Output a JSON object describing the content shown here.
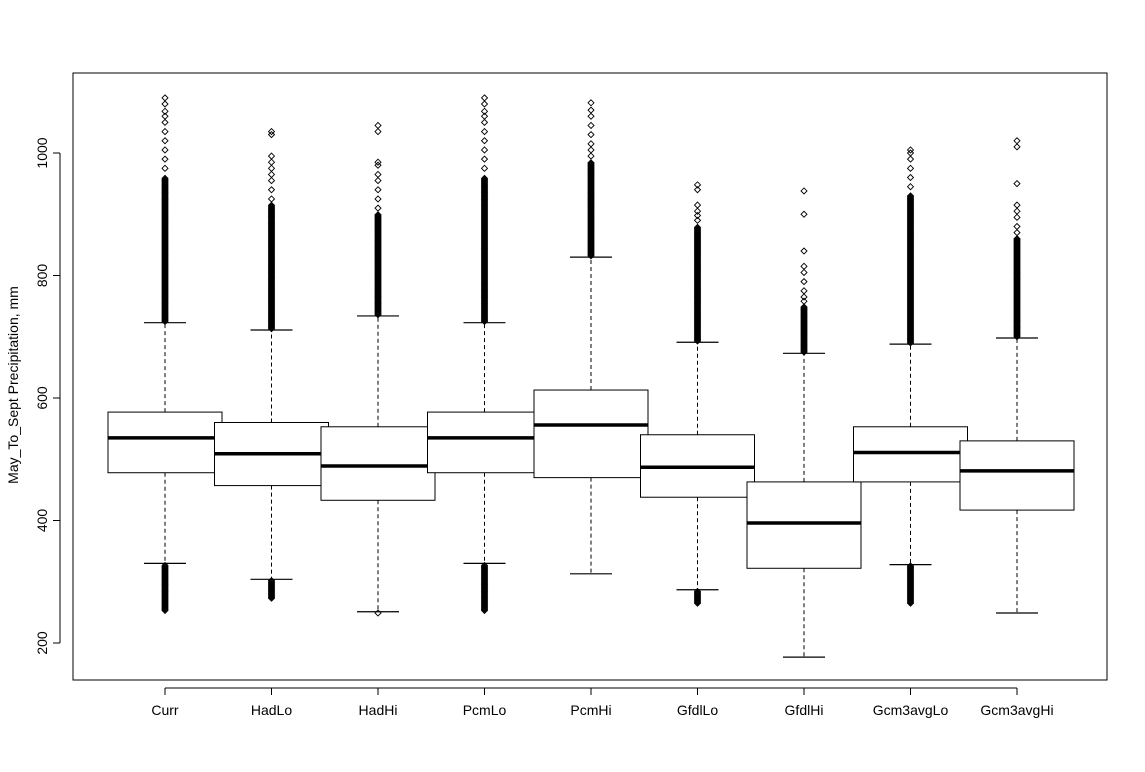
{
  "chart_data": {
    "type": "boxplot",
    "title": "",
    "xlabel": "",
    "ylabel": "May_To_Sept Precipitation, mm",
    "ylim": [
      140,
      1110
    ],
    "yticks": [
      200,
      400,
      600,
      800,
      1000
    ],
    "grid": false,
    "legend": "none",
    "categories": [
      "Curr",
      "HadLo",
      "HadHi",
      "PcmLo",
      "PcmHi",
      "GfdlLo",
      "GfdlHi",
      "Gcm3avgLo",
      "Gcm3avgHi"
    ],
    "boxes": [
      {
        "name": "Curr",
        "whisker_low": 330,
        "q1": 478,
        "median": 535,
        "q3": 577,
        "whisker_high": 723,
        "outliers_low_range": [
          253,
          328
        ],
        "outliers_high_range": [
          725,
          960
        ],
        "outliers_high_sparse": [
          975,
          990,
          1005,
          1020,
          1035,
          1050,
          1060,
          1068,
          1080,
          1090
        ]
      },
      {
        "name": "HadLo",
        "whisker_low": 304,
        "q1": 457,
        "median": 509,
        "q3": 560,
        "whisker_high": 711,
        "outliers_low_range": [
          273,
          302
        ],
        "outliers_high_range": [
          713,
          915
        ],
        "outliers_high_sparse": [
          925,
          940,
          955,
          965,
          975,
          985,
          995,
          1030,
          1035
        ]
      },
      {
        "name": "HadHi",
        "whisker_low": 251,
        "q1": 433,
        "median": 489,
        "q3": 553,
        "whisker_high": 734,
        "outliers_low": [
          249
        ],
        "outliers_high_range": [
          736,
          900
        ],
        "outliers_high_sparse": [
          910,
          925,
          940,
          955,
          965,
          980,
          985,
          1035,
          1045
        ]
      },
      {
        "name": "PcmLo",
        "whisker_low": 330,
        "q1": 478,
        "median": 535,
        "q3": 577,
        "whisker_high": 723,
        "outliers_low_range": [
          253,
          328
        ],
        "outliers_high_range": [
          725,
          960
        ],
        "outliers_high_sparse": [
          975,
          990,
          1005,
          1020,
          1035,
          1050,
          1060,
          1068,
          1080,
          1090
        ]
      },
      {
        "name": "PcmHi",
        "whisker_low": 313,
        "q1": 470,
        "median": 556,
        "q3": 613,
        "whisker_high": 830,
        "outliers_high_range": [
          832,
          985
        ],
        "outliers_high_sparse": [
          995,
          1005,
          1015,
          1030,
          1045,
          1060,
          1070,
          1082
        ]
      },
      {
        "name": "GfdlLo",
        "whisker_low": 287,
        "q1": 438,
        "median": 487,
        "q3": 540,
        "whisker_high": 691,
        "outliers_low_range": [
          265,
          285
        ],
        "outliers_high_range": [
          693,
          880
        ],
        "outliers_high_sparse": [
          890,
          898,
          905,
          915,
          940,
          948
        ]
      },
      {
        "name": "GfdlHi",
        "whisker_low": 177,
        "q1": 322,
        "median": 396,
        "q3": 463,
        "whisker_high": 673,
        "outliers_high_range": [
          675,
          750
        ],
        "outliers_high_sparse": [
          758,
          765,
          775,
          790,
          805,
          815,
          840,
          900,
          938
        ]
      },
      {
        "name": "Gcm3avgLo",
        "whisker_low": 328,
        "q1": 463,
        "median": 511,
        "q3": 553,
        "whisker_high": 688,
        "outliers_low_range": [
          265,
          326
        ],
        "outliers_high_range": [
          690,
          930
        ],
        "outliers_high_sparse": [
          945,
          960,
          975,
          990,
          1000,
          1005
        ]
      },
      {
        "name": "Gcm3avgHi",
        "whisker_low": 249,
        "q1": 417,
        "median": 481,
        "q3": 530,
        "whisker_high": 698,
        "outliers_high_range": [
          700,
          860
        ],
        "outliers_high_sparse": [
          870,
          880,
          895,
          905,
          915,
          950,
          1010,
          1020
        ]
      }
    ]
  }
}
